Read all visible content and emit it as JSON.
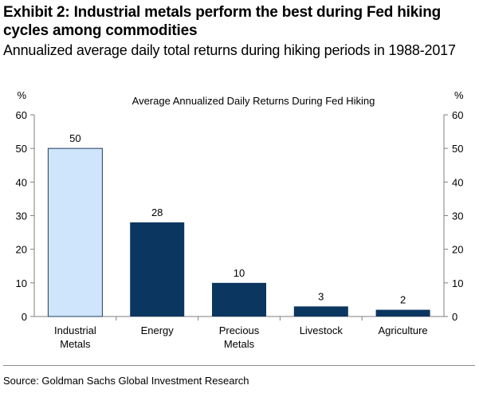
{
  "header": {
    "title": "Exhibit 2: Industrial metals perform the best during Fed hiking cycles among commodities",
    "subtitle": "Annualized average daily total returns during hiking periods in 1988-2017"
  },
  "footer": {
    "source": "Source: Goldman Sachs Global Investment Research"
  },
  "chart_data": {
    "type": "bar",
    "title": "Average Annualized Daily Returns During Fed Hiking",
    "y_unit_left": "%",
    "y_unit_right": "%",
    "categories": [
      "Industrial\nMetals",
      "Energy",
      "Precious\nMetals",
      "Livestock",
      "Agriculture"
    ],
    "values": [
      50,
      28,
      10,
      3,
      2
    ],
    "data_labels": [
      "50",
      "28",
      "10",
      "3",
      "2"
    ],
    "ylim": [
      0,
      60
    ],
    "yticks": [
      0,
      10,
      20,
      30,
      40,
      50,
      60
    ],
    "grid": false,
    "colors": {
      "highlight": "#cfe5fb",
      "highlight_border": "#1f3a5f",
      "bar": "#0b3660",
      "axis": "#7f7f7f"
    }
  }
}
